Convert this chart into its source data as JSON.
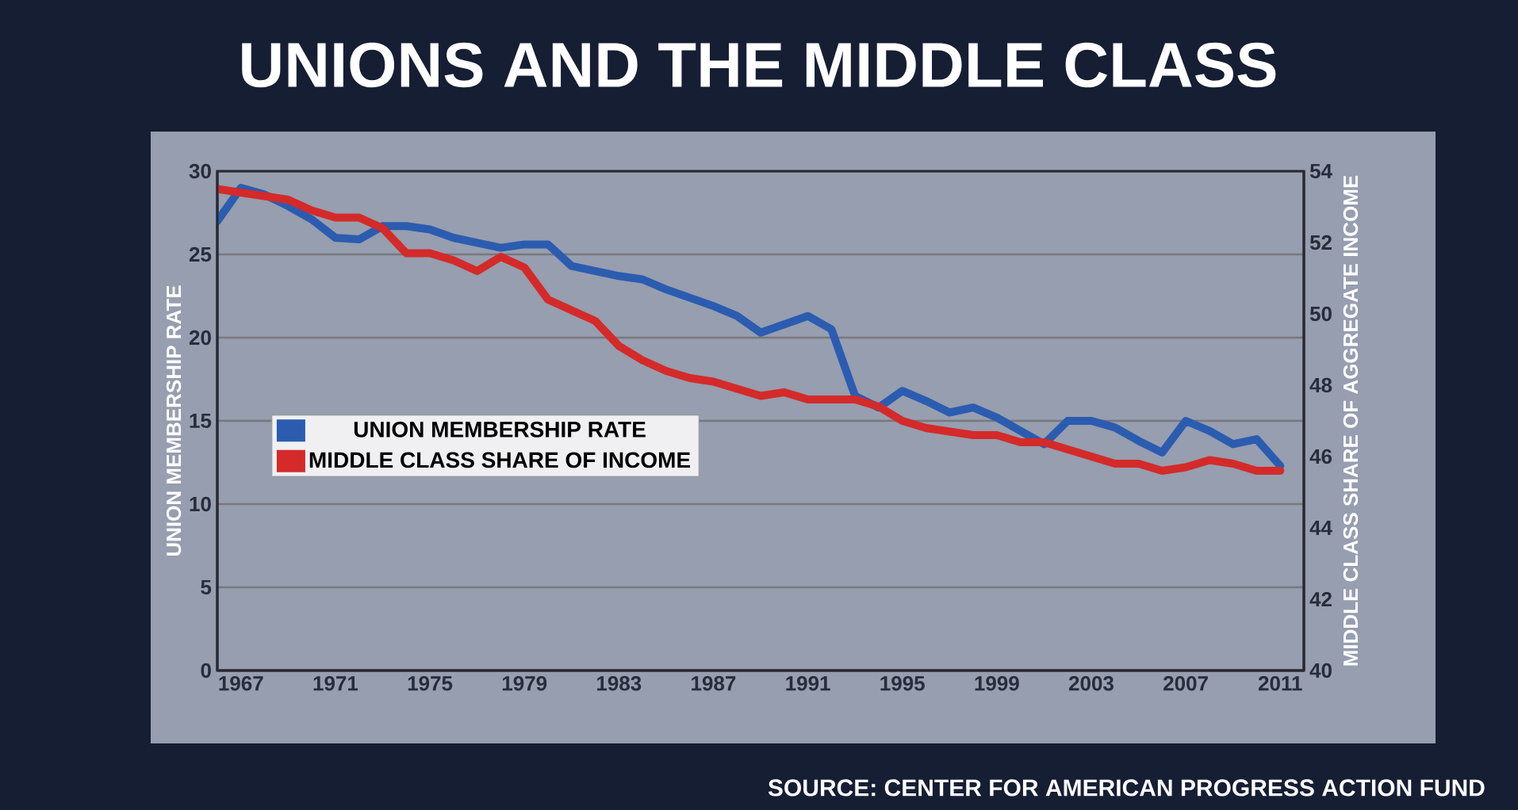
{
  "chart_data": {
    "type": "line",
    "title": "UNIONS AND THE MIDDLE CLASS",
    "ylabel": "UNION MEMBERSHIP RATE",
    "y2label": "MIDDLE CLASS SHARE OF AGGREGATE INCOME",
    "annotations": [
      "SOURCE: CENTER FOR AMERICAN PROGRESS ACTION FUND"
    ],
    "x": [
      1966,
      1967,
      1968,
      1969,
      1970,
      1971,
      1972,
      1973,
      1974,
      1975,
      1976,
      1977,
      1978,
      1979,
      1980,
      1981,
      1982,
      1983,
      1984,
      1985,
      1986,
      1987,
      1988,
      1989,
      1990,
      1991,
      1992,
      1993,
      1994,
      1995,
      1996,
      1997,
      1998,
      1999,
      2000,
      2001,
      2002,
      2003,
      2004,
      2005,
      2006,
      2007,
      2008,
      2009,
      2010,
      2011
    ],
    "xlim": [
      1966,
      2012
    ],
    "xticks": [
      1967,
      1971,
      1975,
      1979,
      1983,
      1987,
      1991,
      1995,
      1999,
      2003,
      2007,
      2011
    ],
    "ylim": [
      0,
      30
    ],
    "yticks": [
      0,
      5,
      10,
      15,
      20,
      25,
      30
    ],
    "y2lim": [
      40,
      54
    ],
    "y2ticks": [
      40,
      42,
      44,
      46,
      48,
      50,
      52,
      54
    ],
    "grid": "y",
    "legend": "left",
    "line_style": "solid",
    "series": [
      {
        "name": "UNION MEMBERSHIP RATE",
        "color": "#2b5cb0",
        "values": [
          27.0,
          29.0,
          28.6,
          27.9,
          27.1,
          26.0,
          25.9,
          26.7,
          26.7,
          26.5,
          26.0,
          25.7,
          25.4,
          25.6,
          25.6,
          24.3,
          24.0,
          23.7,
          23.5,
          22.9,
          22.4,
          21.9,
          21.3,
          20.3,
          20.8,
          21.3,
          20.5,
          16.5,
          15.8,
          16.8,
          16.2,
          15.5,
          15.8,
          15.2,
          14.4,
          13.6,
          15.0,
          15.0,
          14.6,
          13.8,
          13.1,
          15.0,
          14.4,
          13.6,
          13.9,
          12.3
        ]
      },
      {
        "name": "MIDDLE CLASS SHARE OF INCOME",
        "color": "#d42a2a",
        "axis": "y2",
        "values": [
          53.5,
          53.4,
          53.3,
          53.2,
          52.9,
          52.7,
          52.7,
          52.4,
          51.7,
          51.7,
          51.5,
          51.2,
          51.6,
          51.3,
          50.4,
          50.1,
          49.8,
          49.1,
          48.7,
          48.4,
          48.2,
          48.1,
          47.9,
          47.7,
          47.8,
          47.6,
          47.6,
          47.6,
          47.4,
          47.0,
          46.8,
          46.7,
          46.6,
          46.6,
          46.4,
          46.4,
          46.2,
          46.0,
          45.8,
          45.8,
          45.6,
          45.7,
          45.9,
          45.8,
          45.6,
          45.6
        ]
      }
    ]
  }
}
